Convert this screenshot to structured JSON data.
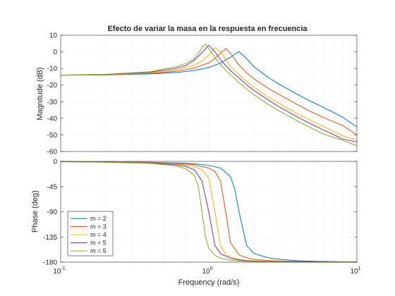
{
  "chart_data": {
    "type": "line",
    "title": "Efecto de variar la masa en la respuesta en frecuencia",
    "xlabel": "Frequency  (rad/s)",
    "x_scale": "log",
    "xlim": [
      0.1,
      10
    ],
    "x_ticks": [
      {
        "value": 0.1,
        "base": "10",
        "exp": "-1"
      },
      {
        "value": 1,
        "base": "10",
        "exp": "0"
      },
      {
        "value": 10,
        "base": "10",
        "exp": "1"
      }
    ],
    "grid": true,
    "legend_placement": "bottom-left",
    "magnitude": {
      "ylabel": "Magnitude (dB)",
      "ylim": [
        -60,
        10
      ],
      "yticks": [
        "10",
        "0",
        "-10",
        "-20",
        "-30",
        "-40",
        "-50",
        "-60"
      ],
      "ytick_values": [
        10,
        0,
        -10,
        -20,
        -30,
        -40,
        -50,
        -60
      ]
    },
    "phase": {
      "ylabel": "Phase (deg)",
      "ylim": [
        -180,
        0
      ],
      "yticks": [
        "0",
        "-45",
        "-90",
        "-135",
        "-180"
      ],
      "ytick_values": [
        0,
        -45,
        -90,
        -135,
        -180
      ]
    },
    "series": [
      {
        "name": "m = 2",
        "color": "#0072BD",
        "x": [
          0.1,
          0.2,
          0.4,
          0.6,
          0.8,
          1.0,
          1.2,
          1.4,
          1.5,
          1.6,
          1.8,
          2.0,
          2.5,
          3,
          4,
          5,
          6,
          8,
          10
        ],
        "magnitude": [
          -14,
          -13.9,
          -13.3,
          -12.5,
          -11.2,
          -9.4,
          -6.8,
          -3.3,
          -1.3,
          0.1,
          -4,
          -8.7,
          -15.2,
          -19.6,
          -25.8,
          -30.2,
          -33.6,
          -39.3,
          -45.2
        ],
        "phase": [
          -0.3,
          -0.8,
          -1.6,
          -2.8,
          -4.3,
          -7,
          -12,
          -27,
          -50,
          -90,
          -150,
          -164,
          -172,
          -175,
          -177.5,
          -178.3,
          -178.8,
          -179.2,
          -179.5
        ]
      },
      {
        "name": "m = 3",
        "color": "#D95319",
        "x": [
          0.1,
          0.2,
          0.4,
          0.6,
          0.8,
          1.0,
          1.1,
          1.2,
          1.3,
          1.4,
          1.6,
          1.8,
          2.0,
          2.5,
          3,
          4,
          5,
          6,
          8,
          10
        ],
        "magnitude": [
          -14,
          -13.8,
          -13,
          -11.7,
          -9.8,
          -6.6,
          -4,
          -0.8,
          2,
          -0.8,
          -8,
          -12.6,
          -16,
          -21.8,
          -25.8,
          -31.9,
          -36.4,
          -39.7,
          -44.3,
          -50
        ],
        "phase": [
          -0.4,
          -0.9,
          -2,
          -3.5,
          -6,
          -12,
          -18,
          -35,
          -90,
          -145,
          -167,
          -172,
          -175,
          -177,
          -178,
          -178.7,
          -179.1,
          -179.3,
          -179.5,
          -179.7
        ]
      },
      {
        "name": "m = 4",
        "color": "#EDB120",
        "x": [
          0.1,
          0.2,
          0.4,
          0.6,
          0.8,
          0.9,
          1.0,
          1.1,
          1.2,
          1.3,
          1.4,
          1.6,
          1.8,
          2.0,
          2.5,
          3,
          4,
          5,
          6,
          8,
          10
        ],
        "magnitude": [
          -14,
          -13.7,
          -12.7,
          -11,
          -8,
          -5.5,
          -2,
          2.5,
          0,
          -4.5,
          -8.5,
          -13.8,
          -17.8,
          -21.2,
          -27,
          -31.2,
          -37.4,
          -41.8,
          -45.2,
          -50.5,
          -53.2
        ],
        "phase": [
          -0.5,
          -1,
          -2.4,
          -4.5,
          -9,
          -15,
          -30,
          -90,
          -150,
          -166,
          -171,
          -175,
          -176.8,
          -177.5,
          -178.5,
          -179,
          -179.3,
          -179.5,
          -179.6,
          -179.7,
          -179.8
        ]
      },
      {
        "name": "m = 5",
        "color": "#7E2F8E",
        "x": [
          0.1,
          0.2,
          0.4,
          0.6,
          0.7,
          0.8,
          0.9,
          1.0,
          1.1,
          1.2,
          1.4,
          1.6,
          1.8,
          2.0,
          2.5,
          3,
          4,
          5,
          6,
          8,
          10
        ],
        "magnitude": [
          -14,
          -13.6,
          -12.3,
          -10,
          -8.2,
          -5,
          -0.5,
          4,
          0,
          -4.8,
          -11.2,
          -15.8,
          -19.8,
          -23,
          -28.8,
          -33.2,
          -39.4,
          -43.8,
          -47.2,
          -52.4,
          -54.3
        ],
        "phase": [
          -0.6,
          -1.2,
          -2.8,
          -6,
          -9,
          -15,
          -35,
          -90,
          -150,
          -165,
          -173,
          -176,
          -177.5,
          -178.2,
          -179,
          -179.3,
          -179.5,
          -179.6,
          -179.7,
          -179.8,
          -179.9
        ]
      },
      {
        "name": "m = 5",
        "color": "#77AC30",
        "x": [
          0.1,
          0.2,
          0.4,
          0.6,
          0.7,
          0.8,
          0.85,
          0.9,
          0.95,
          1.0,
          1.1,
          1.2,
          1.4,
          1.6,
          1.8,
          2.0,
          2.5,
          3,
          4,
          5,
          6,
          8,
          10
        ],
        "magnitude": [
          -14,
          -13.5,
          -12,
          -9,
          -7,
          -4,
          -1,
          2.5,
          4.8,
          2,
          -3.5,
          -7.8,
          -13.8,
          -18.5,
          -22.4,
          -25.6,
          -31.4,
          -35.6,
          -41.8,
          -46.2,
          -49.6,
          -53.2,
          -56.5
        ],
        "phase": [
          -0.7,
          -1.5,
          -3.5,
          -8,
          -13,
          -25,
          -45,
          -90,
          -135,
          -155,
          -168,
          -173,
          -176.5,
          -177.8,
          -178.5,
          -178.9,
          -179.3,
          -179.5,
          -179.7,
          -179.8,
          -179.85,
          -179.9,
          -179.95
        ]
      }
    ]
  }
}
